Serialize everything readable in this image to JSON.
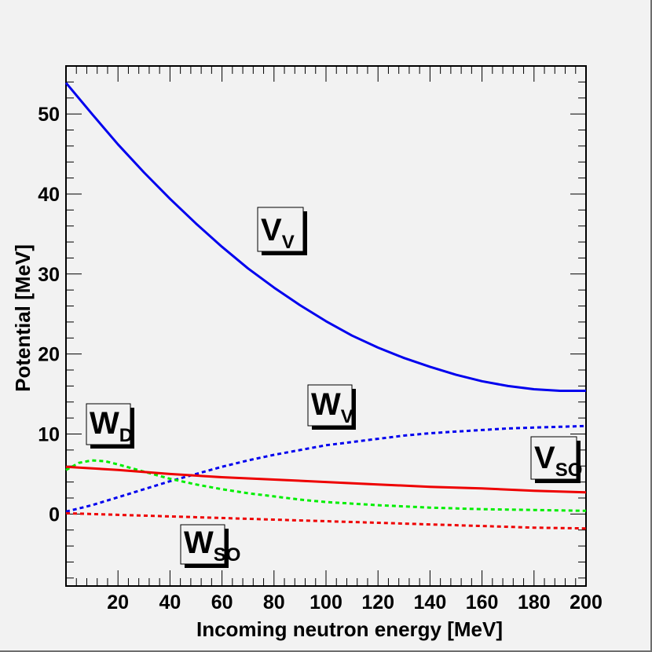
{
  "chart_data": {
    "type": "line",
    "xlabel": "Incoming neutron energy [MeV]",
    "ylabel": "Potential [MeV]",
    "xlim": [
      0,
      200
    ],
    "ylim": [
      -9,
      56
    ],
    "xticks": [
      20,
      40,
      60,
      80,
      100,
      120,
      140,
      160,
      180,
      200
    ],
    "yticks": [
      0,
      10,
      20,
      30,
      40,
      50
    ],
    "grid": false,
    "series": [
      {
        "name": "V_V",
        "color": "#0000ee",
        "style": "solid",
        "x": [
          0,
          10,
          20,
          30,
          40,
          50,
          60,
          70,
          80,
          90,
          100,
          110,
          120,
          130,
          140,
          150,
          160,
          170,
          180,
          190,
          200
        ],
        "y": [
          53.9,
          50.0,
          46.2,
          42.7,
          39.4,
          36.3,
          33.4,
          30.7,
          28.3,
          26.1,
          24.1,
          22.3,
          20.8,
          19.5,
          18.4,
          17.4,
          16.6,
          16.0,
          15.6,
          15.4,
          15.4
        ]
      },
      {
        "name": "W_V",
        "color": "#0000ee",
        "style": "dotted",
        "x": [
          0,
          10,
          20,
          30,
          40,
          50,
          60,
          70,
          80,
          90,
          100,
          110,
          120,
          130,
          140,
          150,
          160,
          170,
          180,
          190,
          200
        ],
        "y": [
          0.3,
          1.1,
          2.1,
          3.1,
          4.1,
          5.0,
          5.9,
          6.7,
          7.4,
          8.0,
          8.6,
          9.0,
          9.4,
          9.8,
          10.1,
          10.3,
          10.5,
          10.7,
          10.8,
          10.9,
          11.0
        ]
      },
      {
        "name": "W_D",
        "color": "#00ee00",
        "style": "dotted",
        "x": [
          0,
          5,
          10,
          15,
          20,
          30,
          40,
          50,
          60,
          70,
          80,
          90,
          100,
          120,
          140,
          160,
          180,
          200
        ],
        "y": [
          5.5,
          6.4,
          6.7,
          6.6,
          6.2,
          5.3,
          4.4,
          3.7,
          3.1,
          2.6,
          2.2,
          1.8,
          1.5,
          1.1,
          0.8,
          0.6,
          0.5,
          0.4
        ]
      },
      {
        "name": "V_SO",
        "color": "#ee0000",
        "style": "solid",
        "x": [
          0,
          20,
          40,
          60,
          80,
          100,
          120,
          140,
          160,
          180,
          200
        ],
        "y": [
          5.9,
          5.5,
          5.0,
          4.6,
          4.3,
          4.0,
          3.7,
          3.4,
          3.2,
          2.9,
          2.7
        ]
      },
      {
        "name": "W_SO",
        "color": "#ee0000",
        "style": "dotted",
        "x": [
          0,
          20,
          40,
          60,
          80,
          100,
          120,
          140,
          160,
          180,
          200
        ],
        "y": [
          0.1,
          -0.1,
          -0.3,
          -0.5,
          -0.7,
          -0.9,
          -1.1,
          -1.3,
          -1.5,
          -1.7,
          -1.8
        ]
      }
    ],
    "annotations": [
      {
        "main": "V",
        "sub": "V"
      },
      {
        "main": "W",
        "sub": "V"
      },
      {
        "main": "W",
        "sub": "D"
      },
      {
        "main": "V",
        "sub": "SO"
      },
      {
        "main": "W",
        "sub": "SO"
      }
    ]
  }
}
